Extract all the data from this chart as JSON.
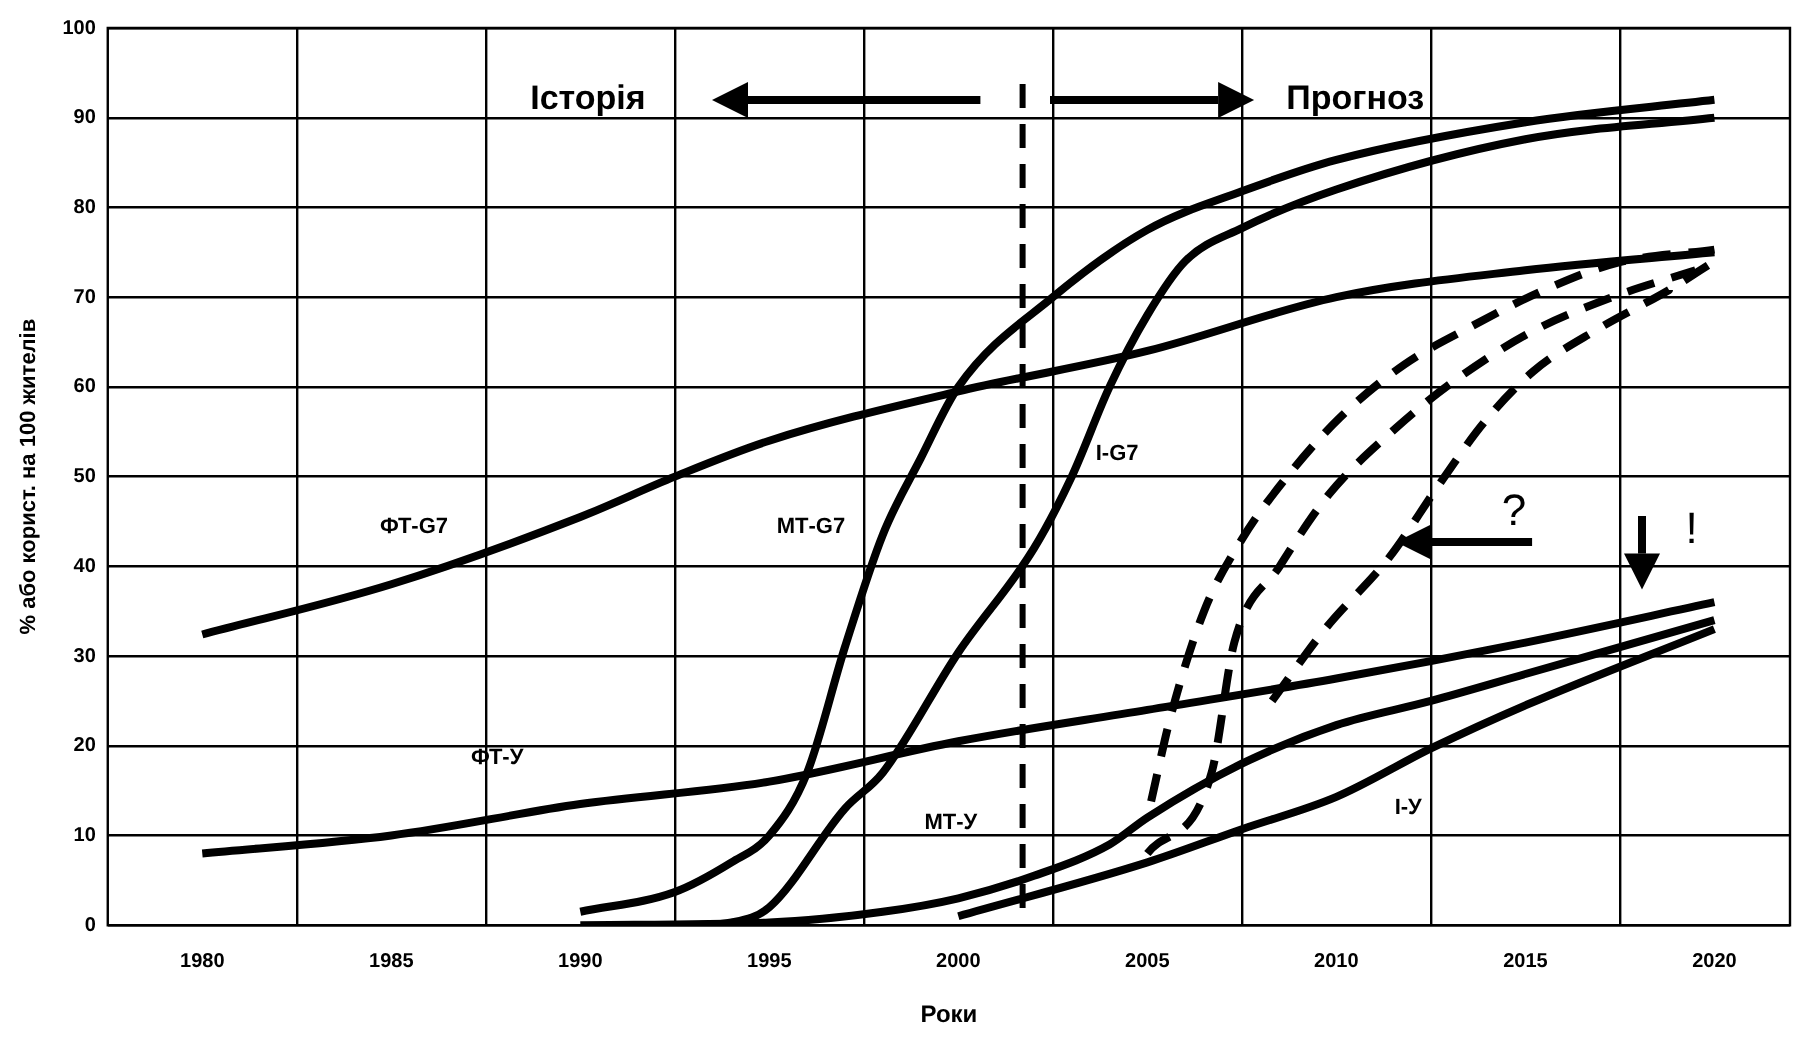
{
  "chart_data": {
    "type": "line",
    "xlabel": "Роки",
    "ylabel": "% або корист. на 100 жителів",
    "xlim": [
      1977.5,
      2022
    ],
    "xticks": [
      1980,
      {
        "value": 1982.5,
        "label": null
      },
      1985,
      {
        "value": 1987.5,
        "label": null
      },
      1990,
      {
        "value": 1992.5,
        "label": null
      },
      1995,
      {
        "value": 1997.5,
        "label": null
      },
      2000,
      {
        "value": 2002.5,
        "label": null
      },
      2005,
      {
        "value": 2007.5,
        "label": null
      },
      2010,
      {
        "value": 2012.5,
        "label": null
      },
      2015,
      {
        "value": 2017.5,
        "label": null
      },
      2020
    ],
    "ylim": [
      0,
      100
    ],
    "yticks": [
      0,
      10,
      20,
      30,
      40,
      50,
      60,
      70,
      80,
      90,
      100
    ],
    "grid": true,
    "legend": false,
    "marker": "none",
    "series": [
      {
        "name": "ФТ-G7",
        "color": "#000000",
        "x": [
          1980,
          1985,
          1990,
          1992.5,
          1995,
          2000,
          2005,
          2010,
          2015,
          2020
        ],
        "values": [
          32.4,
          38,
          45.5,
          50,
          54,
          59.5,
          64,
          70,
          73,
          75
        ]
      },
      {
        "name": "МТ-G7",
        "color": "#000000",
        "x": [
          1990,
          1992.5,
          1994,
          1995,
          1996,
          1997,
          1998,
          1999,
          2000,
          2002.5,
          2005,
          2007.5,
          2010,
          2015,
          2020
        ],
        "values": [
          1.5,
          3.7,
          7,
          10,
          17,
          31,
          43.5,
          52,
          60,
          70,
          77.5,
          81.8,
          85.3,
          89.5,
          92
        ]
      },
      {
        "name": "І-G7",
        "color": "#000000",
        "x": [
          1993,
          1994,
          1995,
          1997,
          1998,
          2000,
          2002,
          2003,
          2004,
          2005,
          2006,
          2007.5,
          2010,
          2015,
          2020
        ],
        "values": [
          0,
          0.3,
          2,
          13,
          17,
          30.4,
          42,
          50,
          60,
          68,
          74,
          77.7,
          82,
          87.6,
          90
        ]
      },
      {
        "name": "ФТ-У",
        "color": "#000000",
        "x": [
          1980,
          1985,
          1990,
          1995,
          2000,
          2005,
          2010,
          2015,
          2020
        ],
        "values": [
          8,
          10,
          13.5,
          16,
          20.5,
          24,
          27.5,
          31.5,
          36
        ]
      },
      {
        "name": "МТ-У",
        "color": "#000000",
        "x": [
          1990,
          1995,
          1998,
          2000,
          2002,
          2004,
          2005,
          2007.5,
          2010,
          2012.5,
          2015,
          2020
        ],
        "values": [
          0,
          0.3,
          1.5,
          3,
          5.5,
          9,
          12,
          18,
          22.3,
          25,
          28,
          34
        ]
      },
      {
        "name": "І-У",
        "color": "#000000",
        "x": [
          2000,
          2005,
          2007.5,
          2010,
          2012.5,
          2015,
          2020
        ],
        "values": [
          1,
          7,
          10.7,
          14.3,
          19.7,
          24.5,
          33
        ]
      },
      {
        "color": "#000000",
        "line_style": "dashed",
        "x": [
          2005.1,
          2005.6,
          2006.5,
          2007.5,
          2008.7,
          2010.1,
          2011.8,
          2013.6,
          2015.5,
          2017.4,
          2020
        ],
        "values": [
          13.8,
          23,
          35,
          43,
          50,
          56.6,
          62.5,
          66.8,
          70.8,
          73.8,
          75.3
        ]
      },
      {
        "color": "#000000",
        "line_style": "dashed",
        "x": [
          2005,
          2006.7,
          2007.3,
          2008.5,
          2009.8,
          2011.6,
          2013.1,
          2015.1,
          2017.3,
          2019.5
        ],
        "values": [
          8,
          17,
          31.5,
          40,
          48,
          55.5,
          60.6,
          66,
          70,
          73
        ]
      },
      {
        "color": "#000000",
        "line_style": "dashed",
        "x": [
          2008.3,
          2009.7,
          2011.4,
          2012.7,
          2013.9,
          2015.2,
          2016.9,
          2018.8,
          2020
        ],
        "values": [
          25,
          33,
          41,
          49,
          56,
          61.7,
          66.4,
          70.8,
          74
        ]
      }
    ],
    "ref_lines": [
      {
        "axis": "x",
        "value": 2001.7,
        "line_style": "dashed",
        "color": "#000000"
      }
    ],
    "annotations": [
      "Історія",
      "Прогноз",
      "?",
      "!"
    ]
  }
}
